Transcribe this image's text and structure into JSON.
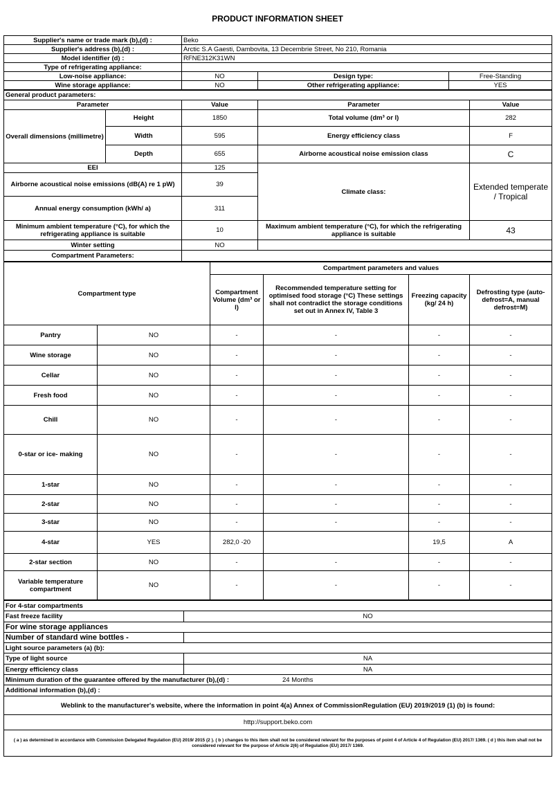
{
  "title": "PRODUCT INFORMATION SHEET",
  "supplier": {
    "name_label": "Supplier's name or trade mark (b),(d) :",
    "name": "Beko",
    "address_label": "Supplier's address (b),(d) :",
    "address": "Arctic S.A  Gaesti, Dambovita, 13 Decembrie Street, No 210, Romania",
    "model_label": "Model identifier (d) :",
    "model": "RFNE312K31WN"
  },
  "type": {
    "label": "Type of refrigerating appliance:",
    "low_noise_label": "Low-noise appliance:",
    "low_noise": "NO",
    "design_label": "Design type:",
    "design": "Free-Standing",
    "wine_label": "Wine storage appliance:",
    "wine": "NO",
    "other_label": "Other refrigerating appliance:",
    "other": "YES"
  },
  "general": {
    "label": "General product parameters:",
    "param_h": "Parameter",
    "value_h": "Value",
    "dims_label": "Overall dimensions (millimetre)",
    "height_label": "Height",
    "height": "1850",
    "width_label": "Width",
    "width": "595",
    "depth_label": "Depth",
    "depth": "655",
    "total_vol_label": "Total volume (dm³ or l)",
    "total_vol": "282",
    "eec_label": "Energy efficiency class",
    "eec": "F",
    "noise_class_label": "Airborne acoustical noise emission class",
    "noise_class": "C",
    "eei_label": "EEI",
    "eei": "125",
    "noise_label": "Airborne acoustical noise emissions (dB(A) re 1 pW)",
    "noise": "39",
    "climate_label": "Climate class:",
    "climate": "Extended temperate / Tropical",
    "aec_label": "Annual energy consumption (kWh/ a)",
    "aec": "311",
    "min_amb_label": "Minimum ambient temperature (°C), for which the refrigerating appliance is suitable",
    "min_amb": "10",
    "max_amb_label": "Maximum ambient temperature (°C), for which the refrigerating appliance is suitable",
    "max_amb": "43",
    "winter_label": "Winter setting",
    "winter": "NO"
  },
  "compartments": {
    "label": "Compartment Parameters:",
    "values_header": "Compartment parameters and values",
    "type_h": "Compartment type",
    "vol_h": "Compartment Volume (dm³ or l)",
    "temp_h": "Recommended temperature setting for optimised food storage (°C) These settings shall not contradict the storage conditions set out in Annex IV, Table 3",
    "freeze_h": "Freezing capacity (kg/ 24 h)",
    "defrost_h": "Defrosting type (auto-defrost=A, manual defrost=M)",
    "rows": [
      {
        "name": "Pantry",
        "present": "NO",
        "vol": "-",
        "temp": "-",
        "freeze": "-",
        "defrost": "-"
      },
      {
        "name": "Wine storage",
        "present": "NO",
        "vol": "-",
        "temp": "-",
        "freeze": "-",
        "defrost": "-"
      },
      {
        "name": "Cellar",
        "present": "NO",
        "vol": "-",
        "temp": "-",
        "freeze": "-",
        "defrost": "-"
      },
      {
        "name": "Fresh food",
        "present": "NO",
        "vol": "-",
        "temp": "-",
        "freeze": "-",
        "defrost": "-"
      },
      {
        "name": "Chill",
        "present": "NO",
        "vol": "-",
        "temp": "-",
        "freeze": "-",
        "defrost": "-"
      },
      {
        "name": "0-star or ice- making",
        "present": "NO",
        "vol": "-",
        "temp": "-",
        "freeze": "-",
        "defrost": "-"
      },
      {
        "name": "1-star",
        "present": "NO",
        "vol": "-",
        "temp": "-",
        "freeze": "-",
        "defrost": "-"
      },
      {
        "name": "2-star",
        "present": "NO",
        "vol": "-",
        "temp": "-",
        "freeze": "-",
        "defrost": "-"
      },
      {
        "name": "3-star",
        "present": "NO",
        "vol": "-",
        "temp": "-",
        "freeze": "-",
        "defrost": "-"
      },
      {
        "name": "4-star",
        "present": "YES",
        "vol": "282,0 -20",
        "temp": "",
        "freeze": "19,5",
        "defrost": "A"
      },
      {
        "name": "2-star section",
        "present": "NO",
        "vol": "-",
        "temp": "-",
        "freeze": "-",
        "defrost": "-"
      },
      {
        "name": "Variable temperature compartment",
        "present": "NO",
        "vol": "-",
        "temp": "-",
        "freeze": "-",
        "defrost": "-"
      }
    ]
  },
  "four_star": {
    "label": "For 4-star compartments",
    "fast_freeze_label": "Fast freeze facility",
    "fast_freeze": "NO"
  },
  "wine": {
    "label": "For wine storage appliances",
    "bottles_label": "Number of standard wine bottles -",
    "bottles": ""
  },
  "light": {
    "label": "Light source parameters (a) (b):",
    "type_label": "Type of light source",
    "type": "NA",
    "eec_label": "Energy efficiency class",
    "eec": "NA"
  },
  "guarantee": {
    "label": "Minimum duration of the guarantee offered by the manufacturer (b),(d) :",
    "value": "24 Months"
  },
  "additional": {
    "label": "Additional information (b),(d) :",
    "weblink_label": "Weblink to the manufacturer's website, where the information in point 4(a) Annex of CommissionRegulation (EU) 2019/2019 (1) (b) is found:",
    "url": "http://support.beko.com"
  },
  "footnote": "( a ) as determined in accordance with Commission Delegated Regulation (EU) 2019/ 2015 (2 ). ( b ) changes to this item shall not be considered relevant for the purposes of point 4 of Article 4 of Regulation (EU) 2017/ 1369. ( d ) this item shall not be considered relevant for the purpose of Article 2(6) of Regulation (EU) 2017/ 1369."
}
